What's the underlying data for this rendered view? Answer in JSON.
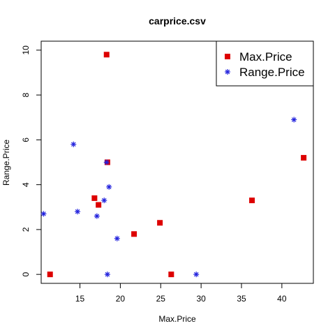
{
  "chart_data": {
    "type": "scatter",
    "title": "carprice.csv",
    "xlabel": "Max.Price",
    "ylabel": "Range.Price",
    "xlim": [
      10.2,
      43.9
    ],
    "ylim": [
      -0.4,
      10.4
    ],
    "x_ticks": [
      15,
      20,
      25,
      30,
      35,
      40
    ],
    "y_ticks": [
      0,
      2,
      4,
      6,
      8,
      10
    ],
    "grid": false,
    "legend_position": "top-right",
    "series": [
      {
        "name": "Max.Price",
        "marker": "filled-square",
        "color": "#dd0000",
        "points": [
          {
            "x": 18.3,
            "y": 9.8
          },
          {
            "x": 42.7,
            "y": 5.2
          },
          {
            "x": 18.4,
            "y": 5.0
          },
          {
            "x": 16.8,
            "y": 3.4
          },
          {
            "x": 36.3,
            "y": 3.3
          },
          {
            "x": 17.3,
            "y": 3.1
          },
          {
            "x": 24.9,
            "y": 2.3
          },
          {
            "x": 21.7,
            "y": 1.8
          },
          {
            "x": 11.3,
            "y": 0.0
          },
          {
            "x": 26.3,
            "y": 0.0
          }
        ]
      },
      {
        "name": "Range.Price",
        "marker": "asterisk",
        "color": "#2222dd",
        "points": [
          {
            "x": 41.5,
            "y": 6.9
          },
          {
            "x": 14.2,
            "y": 5.8
          },
          {
            "x": 18.3,
            "y": 5.0
          },
          {
            "x": 18.6,
            "y": 3.9
          },
          {
            "x": 18.0,
            "y": 3.3
          },
          {
            "x": 14.7,
            "y": 2.8
          },
          {
            "x": 10.5,
            "y": 2.7
          },
          {
            "x": 17.1,
            "y": 2.6
          },
          {
            "x": 19.6,
            "y": 1.6
          },
          {
            "x": 18.4,
            "y": 0.0
          },
          {
            "x": 29.4,
            "y": 0.0
          }
        ]
      }
    ]
  }
}
